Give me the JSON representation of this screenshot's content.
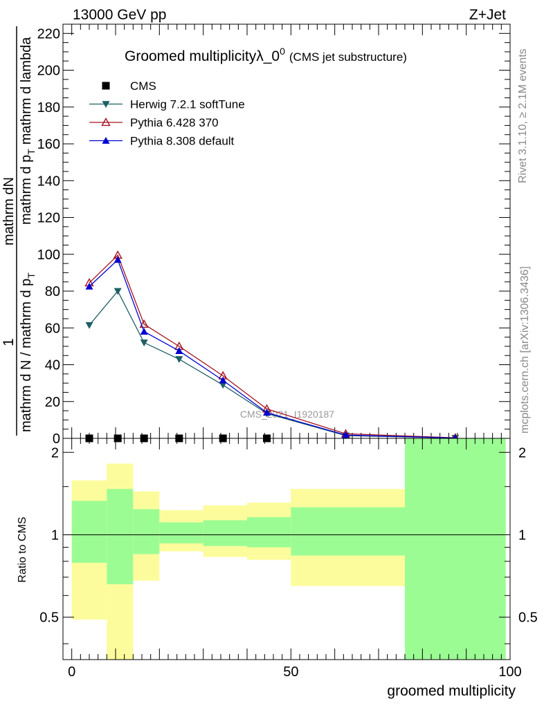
{
  "header": {
    "energy_label": "13000 GeV pp",
    "process_label": "Z+Jet"
  },
  "side_labels": {
    "rivet": "Rivet 3.1.10, ≥ 2.1M events",
    "mcplots": "mcplots.cern.ch [arXiv:1306.3436]"
  },
  "watermark": "CMS_2021_I1920187",
  "colors": {
    "herwig": "#1f5f66",
    "pythia6": "#a3131f",
    "pythia8": "#0000d0",
    "band_inner": "#9cfc94",
    "band_outer": "#fcfc9c"
  },
  "chart_data": [
    {
      "type": "line",
      "title": "Groomed multiplicityλ_0",
      "title_sup": "0",
      "subtitle": "(CMS jet substructure)",
      "xlabel": "",
      "ylabel_numerator": "1",
      "ylabel_denominator": "mathrm d N / mathrm d p",
      "ylabel_denominator_sub": "T",
      "ylabel_right_numerator": "mathrm d",
      "ylabel_right_tail": "N",
      "ylabel_right_sub": "T",
      "ylabel_right_rest": "mathrm d p",
      "ylabel_right_end": "mathrm d lambda",
      "xlim": [
        -2,
        100
      ],
      "ylim": [
        0,
        225
      ],
      "yticks": [
        0,
        20,
        40,
        60,
        80,
        100,
        120,
        140,
        160,
        180,
        200,
        220
      ],
      "legend_position": "top-left",
      "series": [
        {
          "name": "CMS",
          "marker": "square",
          "x": [
            4,
            10.5,
            16.5,
            24.5,
            34.5,
            44.5
          ],
          "y": [
            0,
            0,
            0,
            0,
            0,
            0
          ]
        },
        {
          "name": "Herwig 7.2.1 softTune",
          "marker": "triangle-down",
          "x": [
            4,
            10.5,
            16.5,
            24.5,
            34.5,
            44.5,
            62.5,
            87.5
          ],
          "y": [
            61.5,
            80,
            52,
            43,
            29,
            13.5,
            1.5,
            0.2
          ]
        },
        {
          "name": "Pythia 6.428 370",
          "marker": "triangle-up-open",
          "x": [
            4,
            10.5,
            16.5,
            24.5,
            34.5,
            44.5,
            62.5,
            87.5
          ],
          "y": [
            84.5,
            99.5,
            62,
            50,
            34,
            16,
            2.5,
            0.3
          ]
        },
        {
          "name": "Pythia 8.308 default",
          "marker": "triangle-up",
          "x": [
            4,
            10.5,
            16.5,
            24.5,
            34.5,
            44.5,
            62.5,
            87.5
          ],
          "y": [
            82.5,
            97,
            58,
            47.5,
            31.5,
            14,
            1.8,
            0.2
          ]
        }
      ]
    },
    {
      "type": "area",
      "xlabel": "groomed multiplicity",
      "ylabel": "Ratio to CMS",
      "xlim": [
        -2,
        100
      ],
      "ylim": [
        0.35,
        2.25
      ],
      "yticks": [
        0.5,
        1,
        2
      ],
      "xticks": [
        0,
        50,
        100
      ],
      "reference_line": 1,
      "bins": [
        {
          "x0": 0,
          "x1": 8,
          "inner": [
            0.79,
            1.33
          ],
          "outer": [
            0.49,
            1.58
          ]
        },
        {
          "x0": 8,
          "x1": 14,
          "inner": [
            0.66,
            1.47
          ],
          "outer": [
            0.35,
            1.82
          ]
        },
        {
          "x0": 14,
          "x1": 20,
          "inner": [
            0.85,
            1.24
          ],
          "outer": [
            0.68,
            1.44
          ]
        },
        {
          "x0": 20,
          "x1": 30,
          "inner": [
            0.93,
            1.11
          ],
          "outer": [
            0.87,
            1.23
          ]
        },
        {
          "x0": 30,
          "x1": 40,
          "inner": [
            0.91,
            1.13
          ],
          "outer": [
            0.83,
            1.28
          ]
        },
        {
          "x0": 40,
          "x1": 50,
          "inner": [
            0.9,
            1.16
          ],
          "outer": [
            0.81,
            1.31
          ]
        },
        {
          "x0": 50,
          "x1": 76,
          "inner": [
            0.84,
            1.26
          ],
          "outer": [
            0.65,
            1.47
          ]
        },
        {
          "x0": 76,
          "x1": 99,
          "inner": [
            0.35,
            2.25
          ],
          "outer": [
            0.35,
            2.25
          ]
        }
      ]
    }
  ]
}
